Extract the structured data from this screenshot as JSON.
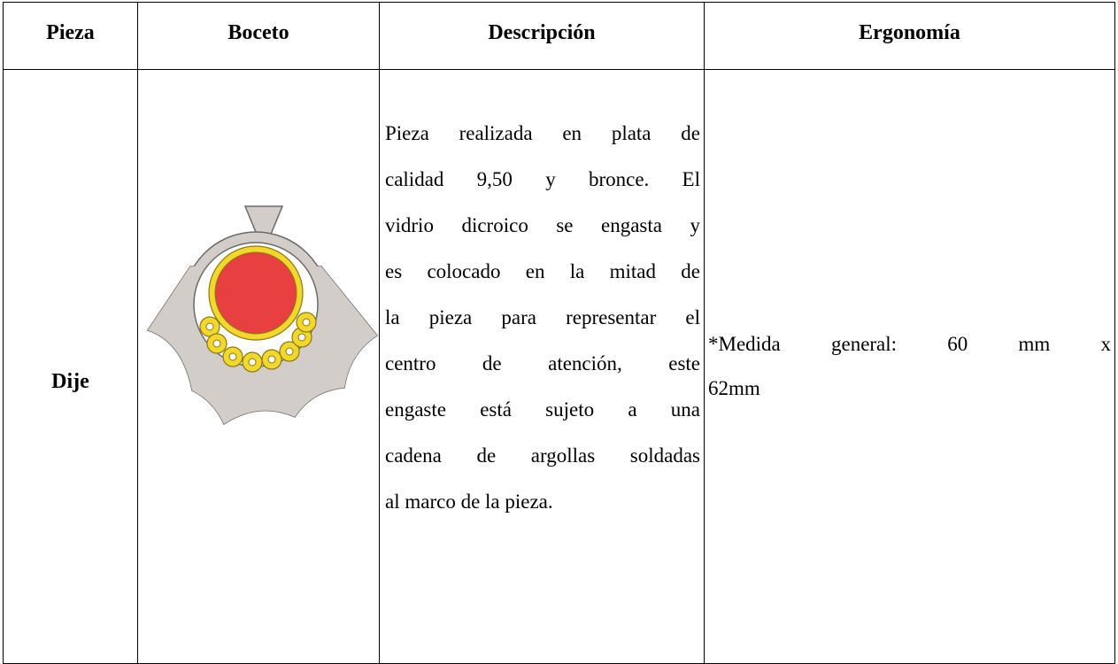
{
  "table": {
    "header": [
      "Pieza",
      "Boceto",
      "Descripción",
      "Ergonomía"
    ],
    "rows": [
      {
        "pieza": "Dije",
        "descripcion": [
          "Pieza realizada en plata de",
          "calidad 9,50 y bronce. El",
          "vidrio dicroico se engasta y",
          "es colocado en la mitad de",
          "la pieza para representar el",
          "centro de atención, este",
          "engaste está sujeto a una",
          "cadena de argollas soldadas",
          "al marco de la pieza."
        ],
        "ergonomia": [
          "*Medida general: 60 mm x",
          "62mm"
        ]
      }
    ]
  }
}
